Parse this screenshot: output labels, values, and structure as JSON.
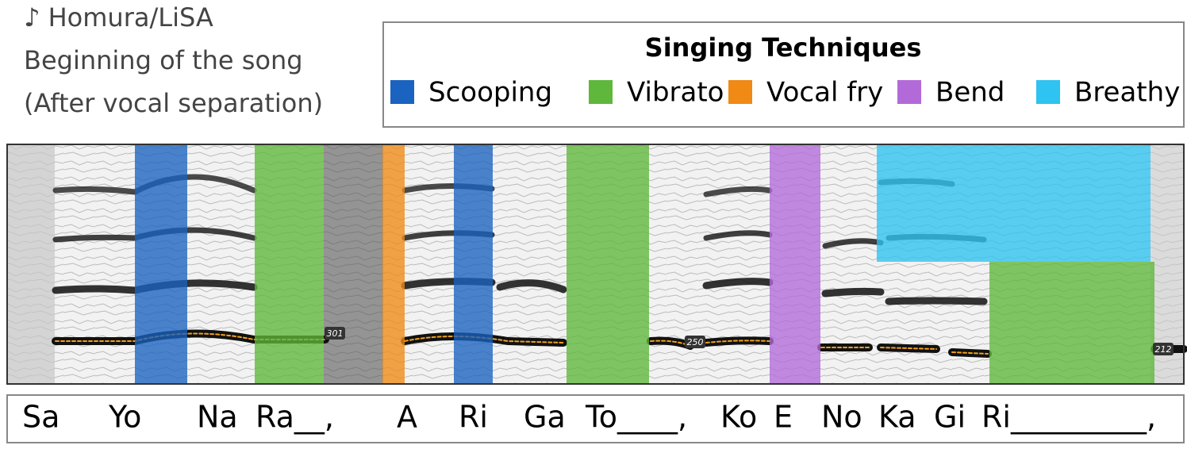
{
  "header": {
    "lines": [
      "♪ Homura/LiSA",
      "Beginning of the song",
      "(After vocal separation)"
    ]
  },
  "legend": {
    "title": "Singing Techniques",
    "items": [
      {
        "label": "Scooping",
        "color": "#1a63c0"
      },
      {
        "label": "Vibrato",
        "color": "#5fb73b"
      },
      {
        "label": "Vocal fry",
        "color": "#f08a14"
      },
      {
        "label": "Bend",
        "color": "#b26ad9"
      },
      {
        "label": "Breathy",
        "color": "#2ec3f0"
      }
    ]
  },
  "spectrogram": {
    "pitch_labels": [
      "301",
      "250",
      "212"
    ]
  },
  "lyrics": [
    "Sa",
    "Yo",
    "Na",
    "Ra__,",
    "A",
    "Ri",
    "Ga",
    "To____,",
    "Ko",
    "E",
    "No",
    "Ka",
    "Gi",
    "Ri_________,"
  ]
}
